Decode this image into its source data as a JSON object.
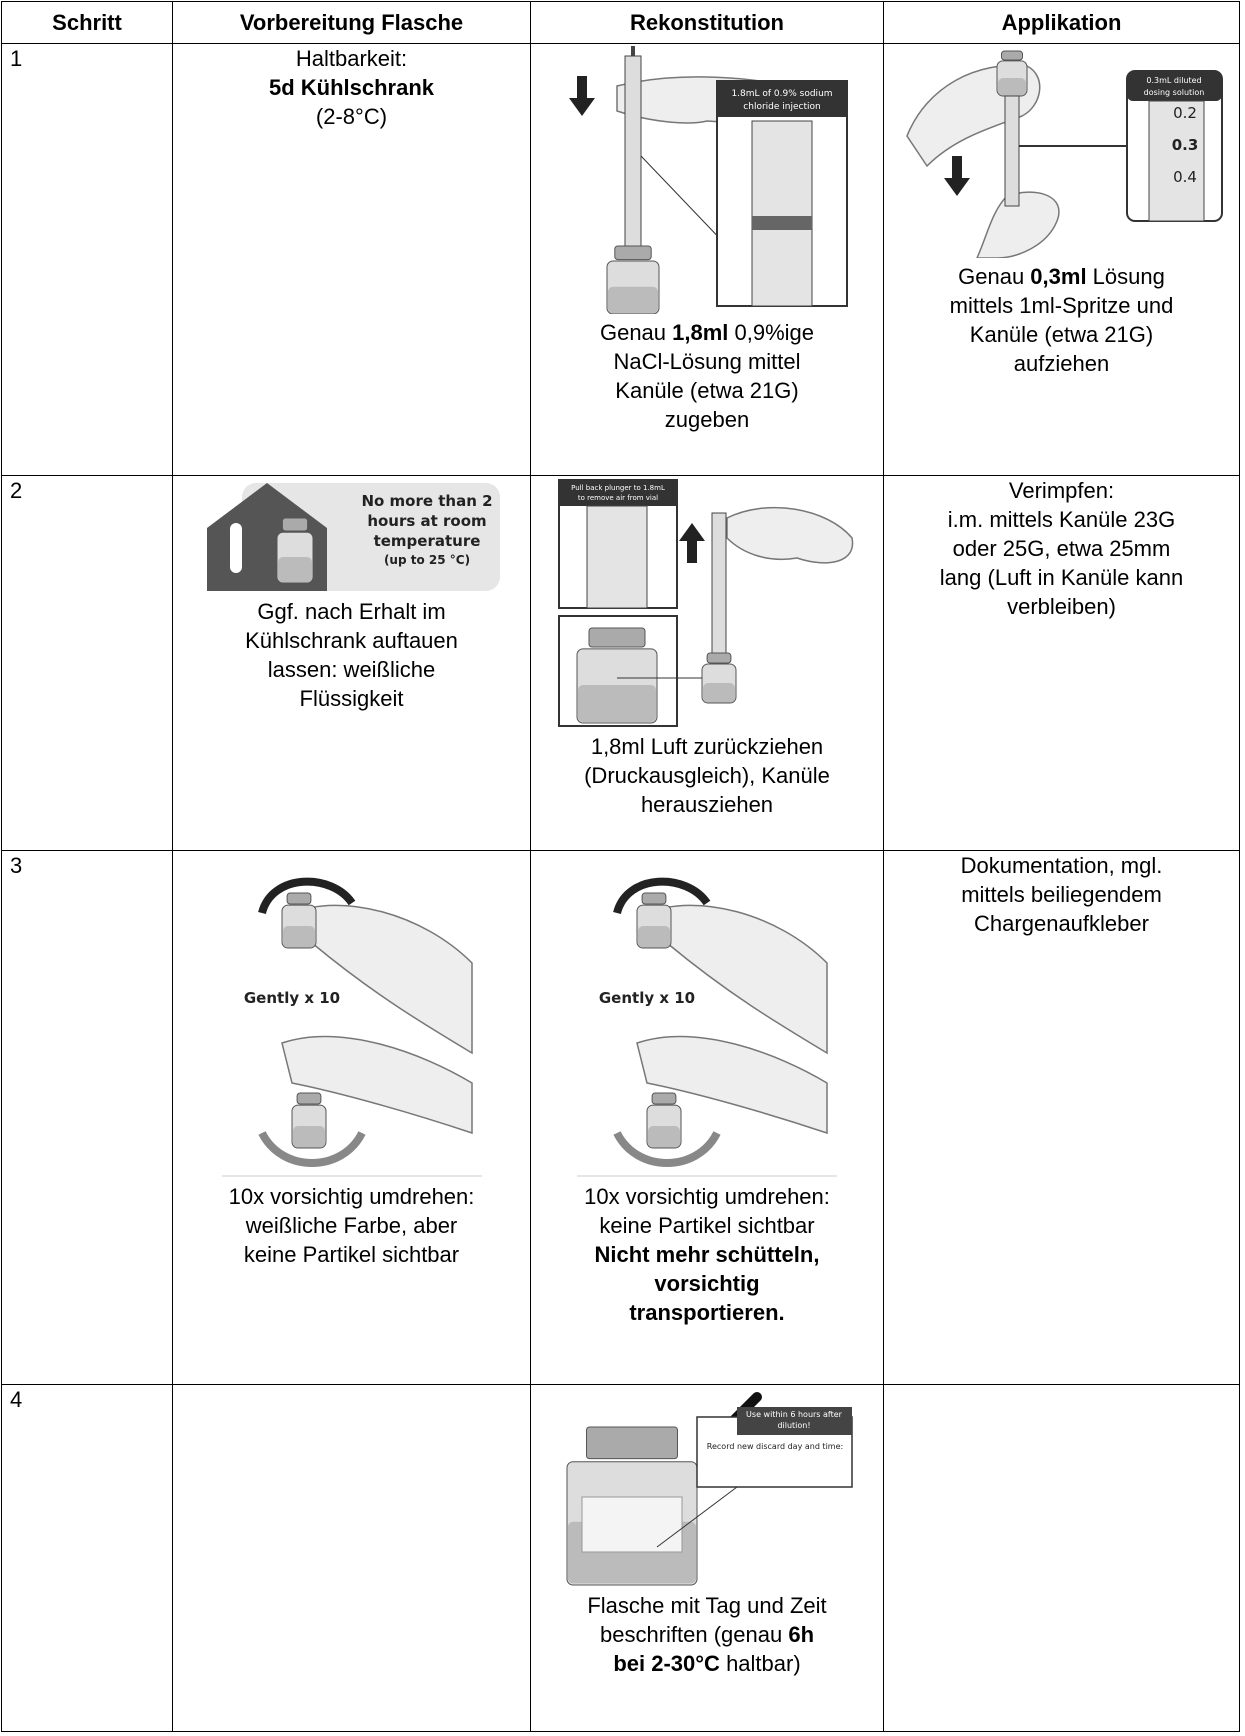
{
  "table": {
    "header": [
      "Schritt",
      "Vorbereitung Flasche",
      "Rekonstitution",
      "Applikation"
    ],
    "rows": [
      {
        "step": "1",
        "prep": {
          "lines": [
            [
              {
                "t": "Haltbarkeit:"
              }
            ],
            [
              {
                "t": "5d Kühlschrank",
                "b": true
              }
            ],
            [
              {
                "t": "(2-8°C)"
              }
            ]
          ]
        },
        "recon": {
          "figure": {
            "label": [
              "1.8mL of 0.9% sodium",
              "chloride injection"
            ]
          },
          "lines": [
            [
              {
                "t": "Genau "
              },
              {
                "t": "1,8ml",
                "b": true
              },
              {
                "t": " 0,9%ige"
              }
            ],
            [
              {
                "t": "NaCl-Lösung mittel"
              }
            ],
            [
              {
                "t": "Kanüle (etwa 21G)"
              }
            ],
            [
              {
                "t": "zugeben"
              }
            ]
          ]
        },
        "app": {
          "figure": {
            "label": [
              "0.3mL diluted",
              "dosing solution"
            ],
            "scale": [
              "0.2",
              "0.3",
              "0.4"
            ]
          },
          "lines": [
            [
              {
                "t": "Genau "
              },
              {
                "t": "0,3ml",
                "b": true
              },
              {
                "t": " Lösung"
              }
            ],
            [
              {
                "t": "mittels 1ml-Spritze und"
              }
            ],
            [
              {
                "t": "Kanüle (etwa 21G)"
              }
            ],
            [
              {
                "t": "aufziehen"
              }
            ]
          ]
        }
      },
      {
        "step": "2",
        "prep": {
          "figure": {
            "label": [
              "No more than 2",
              "hours at room",
              "temperature",
              "(up to 25 °C)"
            ]
          },
          "lines": [
            [
              {
                "t": "Ggf. nach Erhalt im"
              }
            ],
            [
              {
                "t": "Kühlschrank auftauen"
              }
            ],
            [
              {
                "t": "lassen: weißliche"
              }
            ],
            [
              {
                "t": "Flüssigkeit"
              }
            ]
          ]
        },
        "recon": {
          "figure": {
            "label": [
              "Pull back plunger to 1.8mL",
              "to remove air from vial"
            ]
          },
          "lines": [
            [
              {
                "t": "1,8ml Luft zurückziehen"
              }
            ],
            [
              {
                "t": "(Druckausgleich), Kanüle"
              }
            ],
            [
              {
                "t": "herausziehen"
              }
            ]
          ]
        },
        "app": {
          "lines": [
            [
              {
                "t": "Verimpfen:"
              }
            ],
            [
              {
                "t": "i.m. mittels Kanüle 23G"
              }
            ],
            [
              {
                "t": "oder 25G, etwa 25mm"
              }
            ],
            [
              {
                "t": "lang (Luft in Kanüle kann"
              }
            ],
            [
              {
                "t": "verbleiben)"
              }
            ]
          ]
        }
      },
      {
        "step": "3",
        "prep": {
          "figure": {
            "label": [
              "Gently x 10"
            ]
          },
          "lines": [
            [
              {
                "t": "10x vorsichtig umdrehen:"
              }
            ],
            [
              {
                "t": "weißliche Farbe, aber"
              }
            ],
            [
              {
                "t": "keine Partikel sichtbar"
              }
            ]
          ]
        },
        "recon": {
          "figure": {
            "label": [
              "Gently x 10"
            ]
          },
          "lines": [
            [
              {
                "t": "10x vorsichtig umdrehen:"
              }
            ],
            [
              {
                "t": "keine Partikel sichtbar"
              }
            ],
            [
              {
                "t": "Nicht mehr schütteln,",
                "b": true
              }
            ],
            [
              {
                "t": "vorsichtig",
                "b": true
              }
            ],
            [
              {
                "t": "transportieren.",
                "b": true
              }
            ]
          ]
        },
        "app": {
          "lines": [
            [
              {
                "t": "Dokumentation, mgl."
              }
            ],
            [
              {
                "t": "mittels beiliegendem"
              }
            ],
            [
              {
                "t": "Chargenaufkleber"
              }
            ]
          ]
        }
      },
      {
        "step": "4",
        "recon": {
          "figure": {
            "label": [
              "Use within 6 hours after",
              "dilution!"
            ],
            "note": "Record new discard day and time:"
          },
          "lines": [
            [
              {
                "t": "Flasche mit Tag und Zeit"
              }
            ],
            [
              {
                "t": "beschriften (genau "
              },
              {
                "t": "6h",
                "b": true
              }
            ],
            [
              {
                "t": "bei 2-30°C",
                "b": true
              },
              {
                "t": " haltbar)"
              }
            ]
          ]
        }
      }
    ]
  }
}
